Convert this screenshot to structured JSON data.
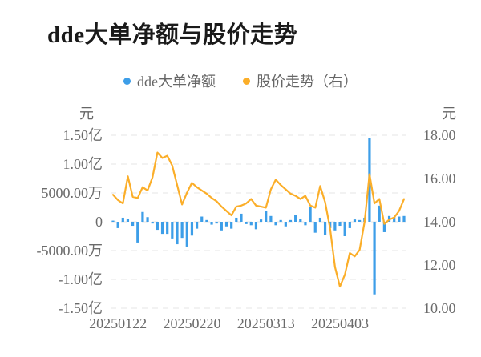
{
  "title": "dde大单净额与股价走势",
  "legend": [
    {
      "label": "dde大单净额",
      "color": "#3d9ee8"
    },
    {
      "label": "股价走势（右）",
      "color": "#fbae29"
    }
  ],
  "chart_data": {
    "type": "combo",
    "title": "dde大单净额与股价走势",
    "grid": "dashed-horizontal",
    "legend_position": "top-center",
    "left_axis": {
      "unit": "元",
      "value_unit": "万元",
      "range": [
        -15000,
        15000
      ],
      "ticks": [
        {
          "label": "1.50亿",
          "value": 15000
        },
        {
          "label": "1.00亿",
          "value": 10000
        },
        {
          "label": "5000.00万",
          "value": 5000
        },
        {
          "label": "0",
          "value": 0
        },
        {
          "label": "-5000.00万",
          "value": -5000
        },
        {
          "label": "-1.00亿",
          "value": -10000
        },
        {
          "label": "-1.50亿",
          "value": -15000
        }
      ]
    },
    "right_axis": {
      "unit": "元",
      "range": [
        10,
        18
      ],
      "ticks": [
        {
          "label": "18.00",
          "value": 18
        },
        {
          "label": "16.00",
          "value": 16
        },
        {
          "label": "14.00",
          "value": 14
        },
        {
          "label": "12.00",
          "value": 12
        },
        {
          "label": "10.00",
          "value": 10
        }
      ]
    },
    "x_axis": {
      "tick_labels": [
        {
          "index": 1,
          "label": "20250122"
        },
        {
          "index": 16,
          "label": "20250220"
        },
        {
          "index": 31,
          "label": "20250313"
        },
        {
          "index": 46,
          "label": "20250403"
        }
      ]
    },
    "series": [
      {
        "name": "dde大单净额",
        "type": "bar",
        "axis": "left",
        "color": "#3d9ee8",
        "values": [
          200,
          -1100,
          700,
          500,
          -700,
          -3600,
          1700,
          800,
          -300,
          -1400,
          -2100,
          -2100,
          -2900,
          -3900,
          -2800,
          -4300,
          -2400,
          -1200,
          900,
          300,
          -500,
          -300,
          -1500,
          -800,
          -1200,
          700,
          1400,
          -400,
          -600,
          -1300,
          400,
          1900,
          1000,
          -600,
          300,
          -800,
          300,
          1200,
          500,
          -600,
          2600,
          -1900,
          700,
          -2300,
          -1100,
          -1500,
          -700,
          -2500,
          -1100,
          400,
          300,
          700,
          14500,
          -12600,
          2800,
          -1800,
          1000,
          800,
          900,
          1000
        ]
      },
      {
        "name": "股价走势（右）",
        "type": "line",
        "axis": "right",
        "color": "#fbae29",
        "values": [
          15.25,
          15.0,
          14.85,
          16.1,
          15.15,
          15.1,
          15.6,
          15.45,
          16.05,
          17.2,
          16.95,
          17.05,
          16.6,
          15.7,
          14.8,
          15.35,
          15.8,
          15.6,
          15.45,
          15.3,
          15.1,
          14.95,
          14.7,
          14.5,
          14.3,
          14.7,
          14.75,
          14.85,
          15.05,
          14.75,
          14.7,
          14.65,
          15.5,
          15.95,
          15.7,
          15.5,
          15.3,
          15.2,
          15.05,
          15.2,
          14.75,
          14.65,
          15.65,
          14.9,
          13.7,
          11.9,
          11.0,
          11.55,
          12.55,
          12.4,
          12.7,
          14.0,
          16.2,
          14.85,
          15.05,
          13.9,
          14.1,
          14.2,
          14.5,
          15.05
        ]
      }
    ]
  }
}
